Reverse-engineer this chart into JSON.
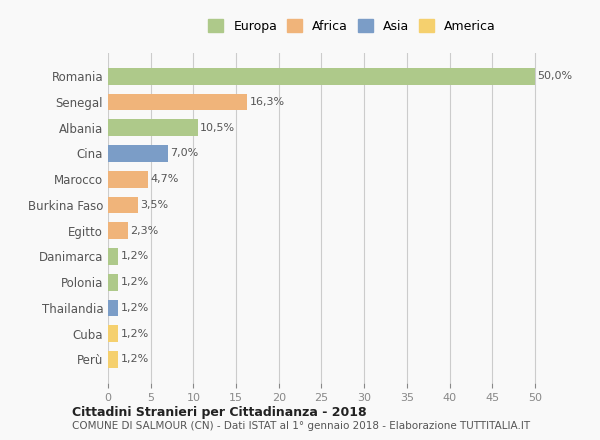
{
  "countries": [
    "Romania",
    "Senegal",
    "Albania",
    "Cina",
    "Marocco",
    "Burkina Faso",
    "Egitto",
    "Danimarca",
    "Polonia",
    "Thailandia",
    "Cuba",
    "Perù"
  ],
  "values": [
    50.0,
    16.3,
    10.5,
    7.0,
    4.7,
    3.5,
    2.3,
    1.2,
    1.2,
    1.2,
    1.2,
    1.2
  ],
  "labels": [
    "50,0%",
    "16,3%",
    "10,5%",
    "7,0%",
    "4,7%",
    "3,5%",
    "2,3%",
    "1,2%",
    "1,2%",
    "1,2%",
    "1,2%",
    "1,2%"
  ],
  "colors": [
    "#aec98a",
    "#f0b47a",
    "#aec98a",
    "#7b9dc7",
    "#f0b47a",
    "#f0b47a",
    "#f0b47a",
    "#aec98a",
    "#aec98a",
    "#7b9dc7",
    "#f5d06e",
    "#f5d06e"
  ],
  "legend_labels": [
    "Europa",
    "Africa",
    "Asia",
    "America"
  ],
  "legend_colors": [
    "#aec98a",
    "#f0b47a",
    "#7b9dc7",
    "#f5d06e"
  ],
  "xlim": [
    0,
    52
  ],
  "xticks": [
    0,
    5,
    10,
    15,
    20,
    25,
    30,
    35,
    40,
    45,
    50
  ],
  "title": "Cittadini Stranieri per Cittadinanza - 2018",
  "subtitle": "COMUNE DI SALMOUR (CN) - Dati ISTAT al 1° gennaio 2018 - Elaborazione TUTTITALIA.IT",
  "bg_color": "#f9f9f9",
  "grid_color": "#cccccc"
}
